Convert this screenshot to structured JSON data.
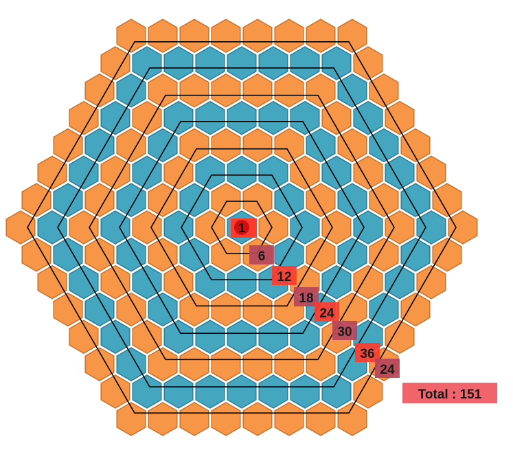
{
  "colors": {
    "background": "#ffffff",
    "hex_blue": "#45a6c0",
    "hex_blue_edge": "#2d7d98",
    "hex_orange": "#f79646",
    "hex_orange_edge": "#c8732b",
    "ring_outline": "#000000",
    "label_red": "#ff3b2e",
    "label_maroon": "#b5465c",
    "total_box": "#f0646c"
  },
  "diagram": {
    "center_label": "1",
    "ring_labels": [
      {
        "text": "6",
        "tone": "maroon"
      },
      {
        "text": "12",
        "tone": "red"
      },
      {
        "text": "18",
        "tone": "maroon"
      },
      {
        "text": "24",
        "tone": "red"
      },
      {
        "text": "30",
        "tone": "maroon"
      },
      {
        "text": "36",
        "tone": "red"
      },
      {
        "text": "24",
        "tone": "maroon"
      }
    ],
    "total_label": "Total : 151"
  }
}
